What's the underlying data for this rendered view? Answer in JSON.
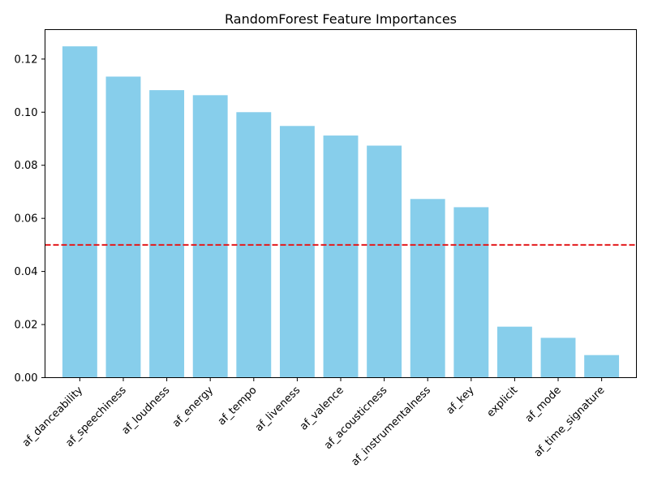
{
  "chart_data": {
    "type": "bar",
    "title": "RandomForest Feature Importances",
    "xlabel": "",
    "ylabel": "",
    "categories": [
      "af_danceability",
      "af_speechiness",
      "af_loudness",
      "af_energy",
      "af_tempo",
      "af_liveness",
      "af_valence",
      "af_acousticness",
      "af_instrumentalness",
      "af_key",
      "explicit",
      "af_mode",
      "af_time_signature"
    ],
    "values": [
      0.1248,
      0.1134,
      0.1083,
      0.1064,
      0.1,
      0.0948,
      0.0912,
      0.0874,
      0.0673,
      0.0642,
      0.0192,
      0.015,
      0.0085
    ],
    "ylim": [
      0,
      0.1311
    ],
    "yticks": [
      0.0,
      0.02,
      0.04,
      0.06,
      0.08,
      0.1,
      0.12
    ],
    "ytick_labels": [
      "0.00",
      "0.02",
      "0.04",
      "0.06",
      "0.08",
      "0.10",
      "0.12"
    ],
    "threshold": 0.05,
    "grid": false,
    "bar_color": "#87ceeb",
    "threshold_color": "#e31a1c"
  }
}
